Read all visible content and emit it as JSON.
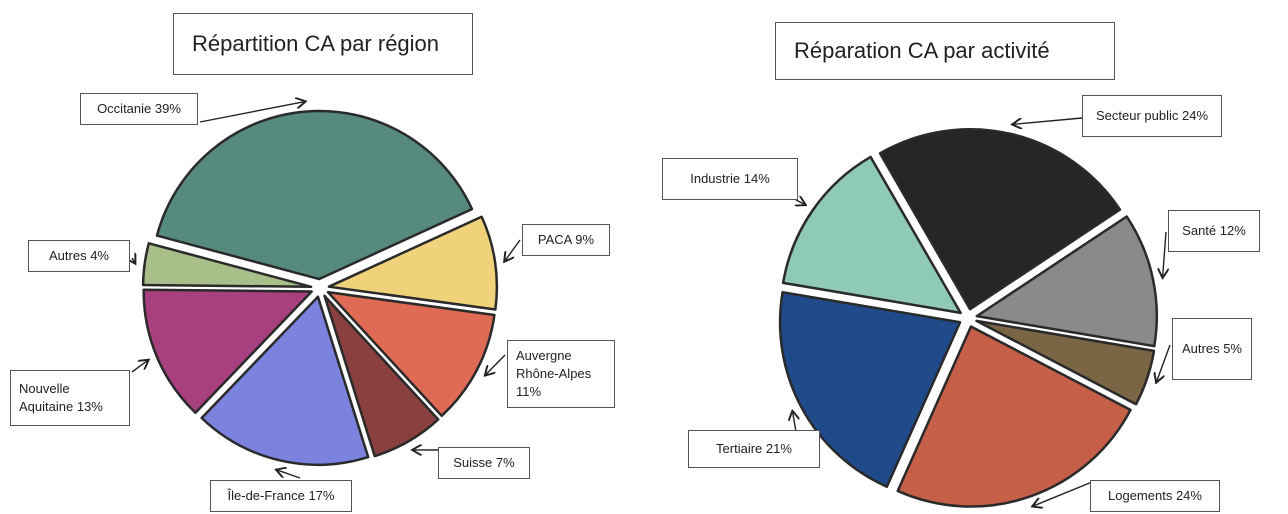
{
  "chart_data": [
    {
      "type": "pie",
      "title": "Répartition CA par région",
      "categories": [
        "Occitanie",
        "PACA",
        "Auvergne Rhône-Alpes",
        "Suisse",
        "Île-de-France",
        "Nouvelle Aquitaine",
        "Autres"
      ],
      "values": [
        39,
        9,
        11,
        7,
        17,
        13,
        4
      ],
      "value_labels": [
        "39%",
        "9%",
        "11%",
        "7%",
        "17%",
        "13%",
        "4%"
      ],
      "colors": [
        "#568a7e",
        "#f0d27a",
        "#e06b55",
        "#8b4040",
        "#7b83de",
        "#a8407f",
        "#a9bf8a"
      ]
    },
    {
      "type": "pie",
      "title": "Réparation CA par activité",
      "categories": [
        "Secteur public",
        "Santé",
        "Autres",
        "Logements",
        "Tertiaire",
        "Industrie"
      ],
      "values": [
        24,
        12,
        5,
        24,
        21,
        14
      ],
      "value_labels": [
        "24%",
        "12%",
        "5%",
        "24%",
        "21%",
        "14%"
      ],
      "colors": [
        "#262626",
        "#8a8a88",
        "#7a6645",
        "#c65f47",
        "#1f4b8a",
        "#8fcab5"
      ]
    }
  ]
}
